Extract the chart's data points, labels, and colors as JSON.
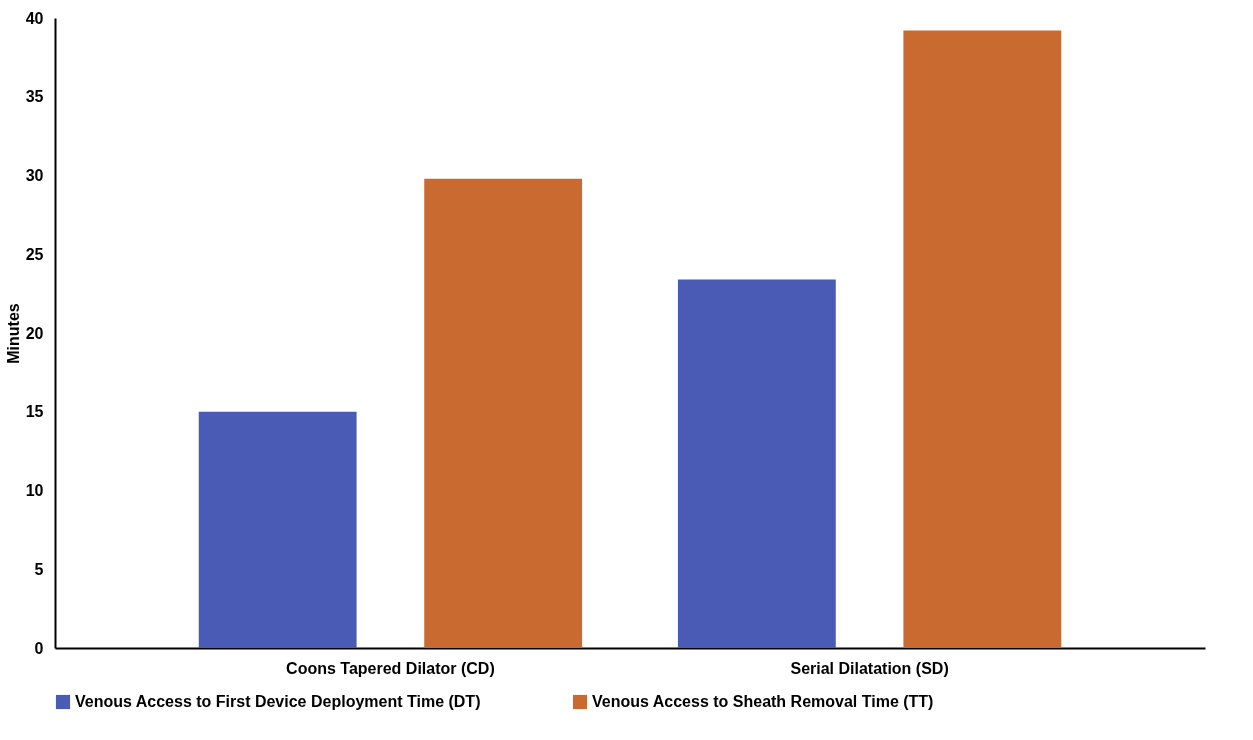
{
  "chart_data": {
    "type": "bar",
    "ylabel": "Minutes",
    "categories": [
      "Coons Tapered Dilator (CD)",
      "Serial Dilatation (SD)"
    ],
    "series": [
      {
        "name": "Venous Access to First Device Deployment Time (DT)",
        "color": "#4a5bb5",
        "values": [
          15,
          23.4
        ]
      },
      {
        "name": "Venous Access to Sheath Removal Time (TT)",
        "color": "#c96b30",
        "values": [
          29.8,
          39.2
        ]
      }
    ],
    "ylim": [
      0,
      40
    ],
    "yticks": [
      0,
      5,
      10,
      15,
      20,
      25,
      30,
      35,
      40
    ],
    "grid": false,
    "legend": "bottom"
  }
}
